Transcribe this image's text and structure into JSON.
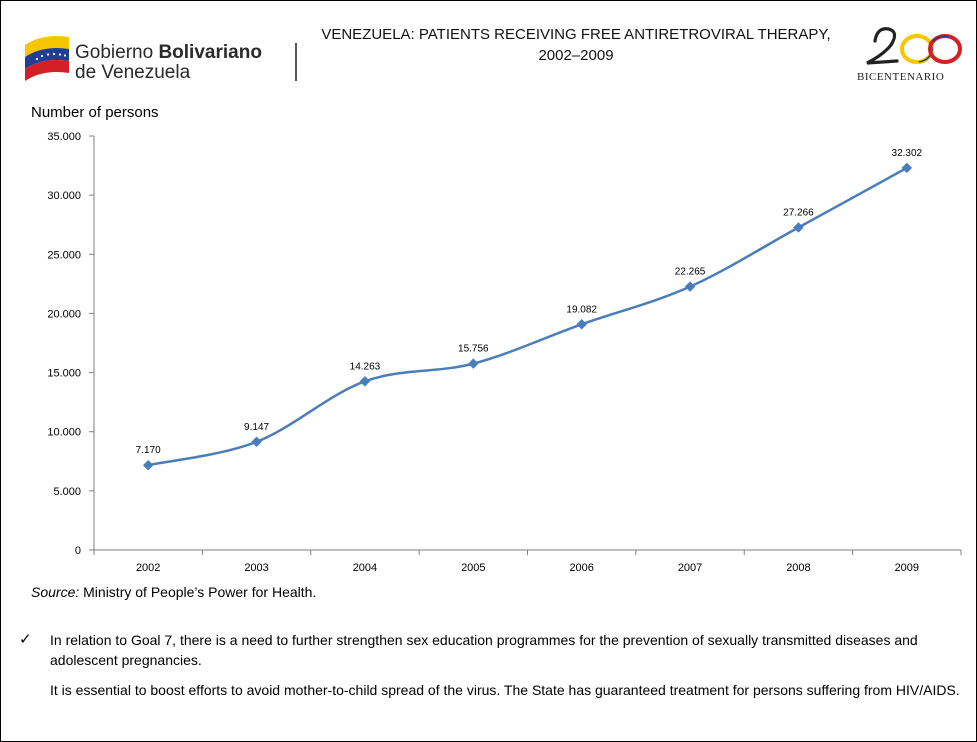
{
  "header": {
    "gov_logo_line1_regular": "Gobierno ",
    "gov_logo_line1_bold": "Bolivariano",
    "gov_logo_line2": "de Venezuela",
    "title_line1": "VENEZUELA: PATIENTS RECEIVING FREE ANTIRETROVIRAL THERAPY,",
    "title_line2": "2002–2009",
    "bicentenario_number": "200",
    "bicentenario_text": "BICENTENARIO"
  },
  "colors": {
    "series": "#4A7EBB",
    "flag_yellow": "#F7C600",
    "flag_blue": "#1F3E94",
    "flag_red": "#D51F26"
  },
  "chart_data": {
    "type": "line",
    "title": "VENEZUELA: PATIENTS RECEIVING FREE ANTIRETROVIRAL THERAPY, 2002–2009",
    "ylabel": "Number of persons",
    "xlabel": "",
    "categories": [
      "2002",
      "2003",
      "2004",
      "2005",
      "2006",
      "2007",
      "2008",
      "2009"
    ],
    "values": [
      7170,
      9147,
      14263,
      15756,
      19082,
      22265,
      27266,
      32302
    ],
    "data_labels": [
      "7.170",
      "9.147",
      "14.263",
      "15.756",
      "19.082",
      "22.265",
      "27.266",
      "32.302"
    ],
    "ylim": [
      0,
      35000
    ],
    "yticks": [
      0,
      5000,
      10000,
      15000,
      20000,
      25000,
      30000,
      35000
    ],
    "ytick_labels": [
      "0",
      "5.000",
      "10.000",
      "15.000",
      "20.000",
      "25.000",
      "30.000",
      "35.000"
    ],
    "marker": "diamond",
    "smooth": true,
    "grid": false,
    "legend": "none"
  },
  "source": {
    "label": "Source:",
    "text": " Ministry of People’s Power for Health."
  },
  "notes": {
    "check_icon": "✓",
    "paragraph1": "In relation to Goal 7, there is a need to further strengthen sex education programmes for the prevention of sexually transmitted diseases and adolescent pregnancies.",
    "paragraph2": "It is essential to boost efforts to avoid mother-to-child spread of the virus. The State has guaranteed treatment for persons suffering from HIV/AIDS."
  }
}
